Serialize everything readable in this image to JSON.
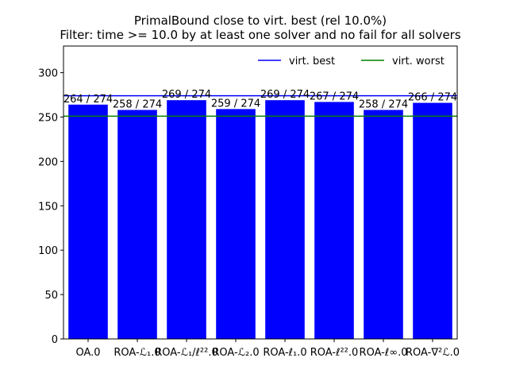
{
  "chart_data": {
    "type": "bar",
    "title": "PrimalBound close to virt. best (rel 10.0%)",
    "subtitle": "Filter: time >= 10.0 by at least one solver and no fail for all solvers",
    "xlabel": "",
    "ylabel": "",
    "categories": [
      "OA.0",
      "ROA-ℒ₁.0",
      "ROA-ℒ₁/ℓ²².0",
      "ROA-ℒ₂.0",
      "ROA-ℓ₁.0",
      "ROA-ℓ²².0",
      "ROA-ℓ∞.0",
      "ROA-∇²ℒ.0"
    ],
    "values": [
      264,
      258,
      269,
      259,
      269,
      267,
      258,
      266
    ],
    "data_labels": [
      "264 / 274",
      "258 / 274",
      "269 / 274",
      "259 / 274",
      "269 / 274",
      "267 / 274",
      "258 / 274",
      "266 / 274"
    ],
    "ylim": [
      0,
      330
    ],
    "yticks": [
      0,
      50,
      100,
      150,
      200,
      250,
      300
    ],
    "bar_color": "#0000ff",
    "reference_lines": [
      {
        "name": "virt. best",
        "value": 274,
        "color": "#0000ff"
      },
      {
        "name": "virt. worst",
        "value": 251,
        "color": "#008000"
      }
    ],
    "legend_position": "top-right",
    "grid": false
  }
}
